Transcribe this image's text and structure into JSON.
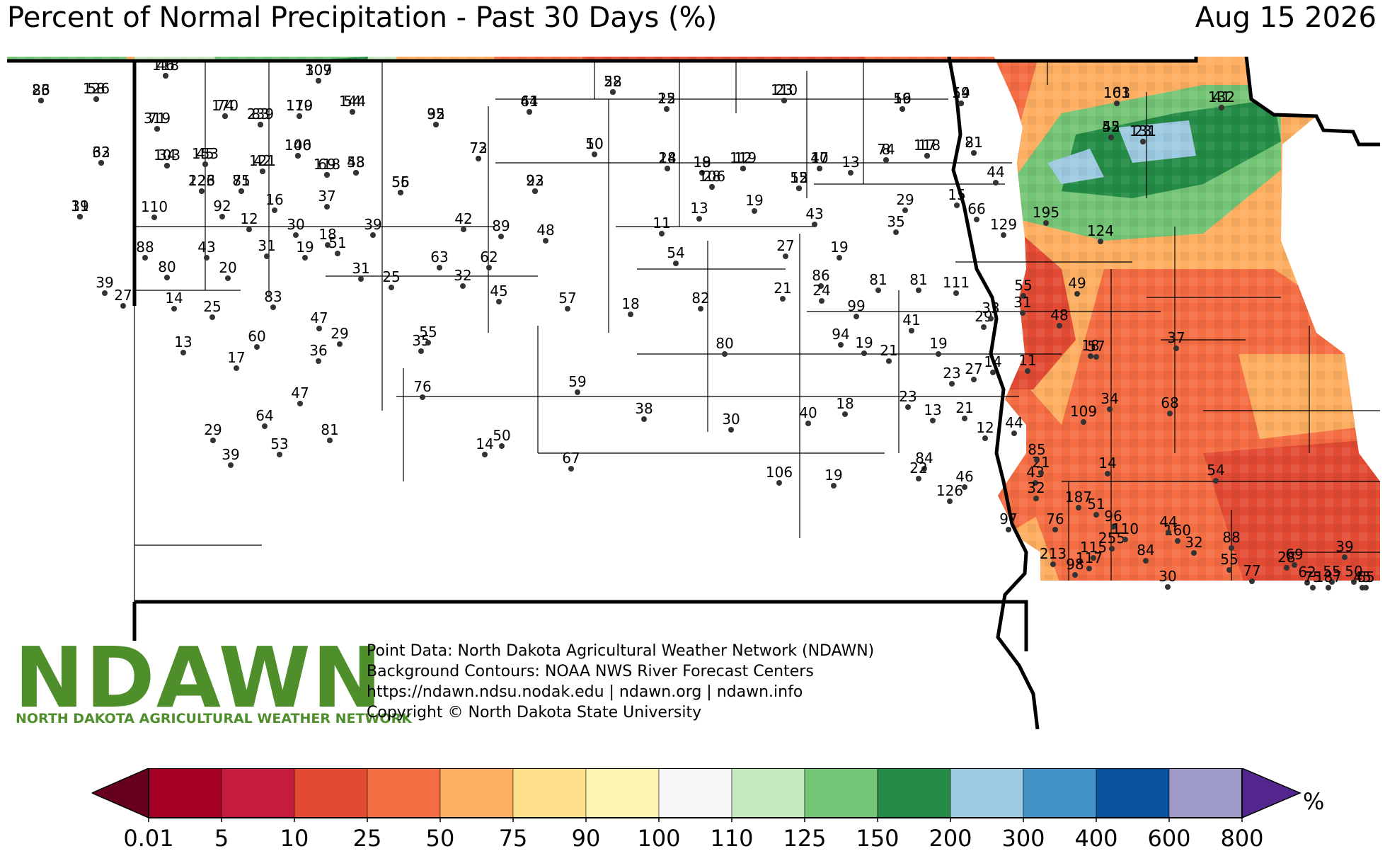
{
  "title": "Percent of Normal Precipitation - Past 30 Days (%)",
  "date": "Aug 15 2026",
  "logo": {
    "name": "NDAWN",
    "subtitle": "NORTH DAKOTA AGRICULTURAL WEATHER NETWORK"
  },
  "credits": [
    "Point Data: North Dakota Agricultural Weather Network (NDAWN)",
    "Background Contours: NOAA NWS River Forecast Centers",
    "https://ndawn.ndsu.nodak.edu | ndawn.org | ndawn.info",
    "Copyright © North Dakota State University"
  ],
  "colors": {
    "deep_red": "#67001f",
    "crimson": "#a50026",
    "red": "#c51b3d",
    "red_orange": "#e34a33",
    "orange": "#f46d43",
    "light_orange": "#fdae61",
    "tan": "#fee08b",
    "pale_yellow": "#fff5b0",
    "white": "#f7f7f7",
    "light_green": "#c7e9c0",
    "green": "#74c476",
    "dark_green": "#238b45",
    "light_blue": "#9ecae1",
    "blue": "#4292c6",
    "dark_blue": "#08519c",
    "lavender": "#9e9ac8",
    "purple": "#54278f"
  },
  "legend": {
    "ticks": [
      "0.01",
      "5",
      "10",
      "25",
      "50",
      "75",
      "90",
      "100",
      "110",
      "125",
      "150",
      "200",
      "300",
      "400",
      "600",
      "800"
    ],
    "unit": "%"
  },
  "station_values": [
    "86",
    "126",
    "118",
    "71",
    "170",
    "239",
    "307",
    "179",
    "144",
    "95",
    "64",
    "52",
    "15",
    "23",
    "19",
    "19",
    "103",
    "132",
    "33",
    "103",
    "153",
    "146",
    "48",
    "69",
    "121",
    "73",
    "10",
    "14",
    "18",
    "12",
    "10",
    "8",
    "17",
    "21",
    "45",
    "131",
    "31",
    "123",
    "85",
    "55",
    "23",
    "28",
    "12",
    "13",
    "44",
    "110",
    "92",
    "16",
    "37",
    "42",
    "89",
    "48",
    "11",
    "13",
    "19",
    "43",
    "29",
    "15",
    "66",
    "195",
    "124",
    "80",
    "88",
    "43",
    "12",
    "30",
    "18",
    "39",
    "63",
    "62",
    "54",
    "27",
    "19",
    "35",
    "129",
    "39",
    "20",
    "31",
    "19",
    "51",
    "32",
    "45",
    "31",
    "25",
    "57",
    "18",
    "82",
    "21",
    "86",
    "81",
    "81",
    "111",
    "29",
    "55",
    "49",
    "27",
    "14",
    "25",
    "47",
    "83",
    "29",
    "35",
    "24",
    "41",
    "31",
    "33",
    "48",
    "99",
    "94",
    "21",
    "19",
    "23",
    "27",
    "14",
    "11",
    "18",
    "13",
    "36",
    "60",
    "55",
    "57",
    "37",
    "80",
    "19",
    "17",
    "76",
    "59",
    "38",
    "30",
    "40",
    "18",
    "23",
    "13",
    "21",
    "12",
    "44",
    "34",
    "68",
    "109",
    "54",
    "43",
    "64",
    "47",
    "14",
    "50",
    "67",
    "84",
    "126",
    "21",
    "85",
    "14",
    "53",
    "81",
    "39",
    "29",
    "106",
    "19",
    "22",
    "46",
    "32",
    "51",
    "187",
    "76",
    "97",
    "84",
    "88",
    "69",
    "55",
    "213",
    "98",
    "117",
    "160",
    "255",
    "96",
    "115",
    "110",
    "44",
    "32",
    "28",
    "39",
    "65",
    "30",
    "55",
    "77",
    "62",
    "187",
    "50",
    "45",
    "75",
    "23",
    "58",
    "46",
    "319",
    "74",
    "83",
    "109",
    "110",
    "54",
    "32",
    "41",
    "28",
    "22",
    "110",
    "56",
    "54",
    "161",
    "41",
    "62",
    "34",
    "45",
    "100",
    "53",
    "118",
    "42",
    "72",
    "50",
    "28",
    "19",
    "119",
    "47",
    "74",
    "118",
    "81",
    "52",
    "23",
    "19",
    "226",
    "71",
    "56",
    "92",
    "106",
    "55"
  ]
}
